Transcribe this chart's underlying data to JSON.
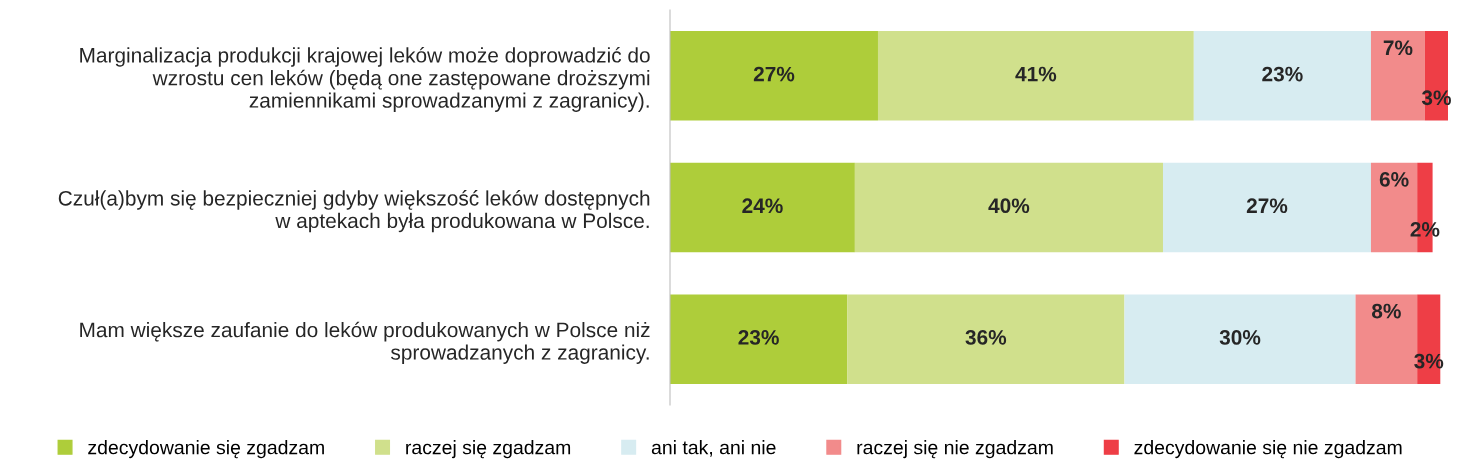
{
  "chart_data": {
    "type": "bar",
    "orientation": "horizontal",
    "stacked": true,
    "legend": "bottom",
    "grid": false,
    "categories": [
      "Marginalizacja produkcji krajowej leków może doprowadzić do\nwzrostu cen leków (będą one zastępowane droższymi\nzamiennikami sprowadzanymi z zagranicy).",
      "Czuł(a)bym się bezpieczniej gdyby większość leków dostępnych\nw aptekach była produkowana w Polsce.",
      "Mam większe zaufanie do leków produkowanych w Polsce niż\nsprowadzanych z zagranicy."
    ],
    "series": [
      {
        "name": "zdecydowanie się zgadzam",
        "color": "#aecd3a",
        "values": [
          27,
          24,
          23
        ],
        "value_labels": [
          "27%",
          "24%",
          "23%"
        ]
      },
      {
        "name": "raczej się zgadzam",
        "color": "#d0e08c",
        "values": [
          41,
          40,
          36
        ],
        "value_labels": [
          "41%",
          "40%",
          "36%"
        ]
      },
      {
        "name": "ani tak, ani nie",
        "color": "#d7ecf1",
        "values": [
          23,
          27,
          30
        ],
        "value_labels": [
          "23%",
          "27%",
          "30%"
        ]
      },
      {
        "name": "raczej się nie zgadzam",
        "color": "#f28b8b",
        "values": [
          7,
          6,
          8
        ],
        "value_labels": [
          "7%",
          "6%",
          "8%"
        ]
      },
      {
        "name": "zdecydowanie się nie zgadzam",
        "color": "#ee3e46",
        "values": [
          3,
          2,
          3
        ],
        "value_labels": [
          "3%",
          "2%",
          "3%"
        ]
      }
    ]
  }
}
